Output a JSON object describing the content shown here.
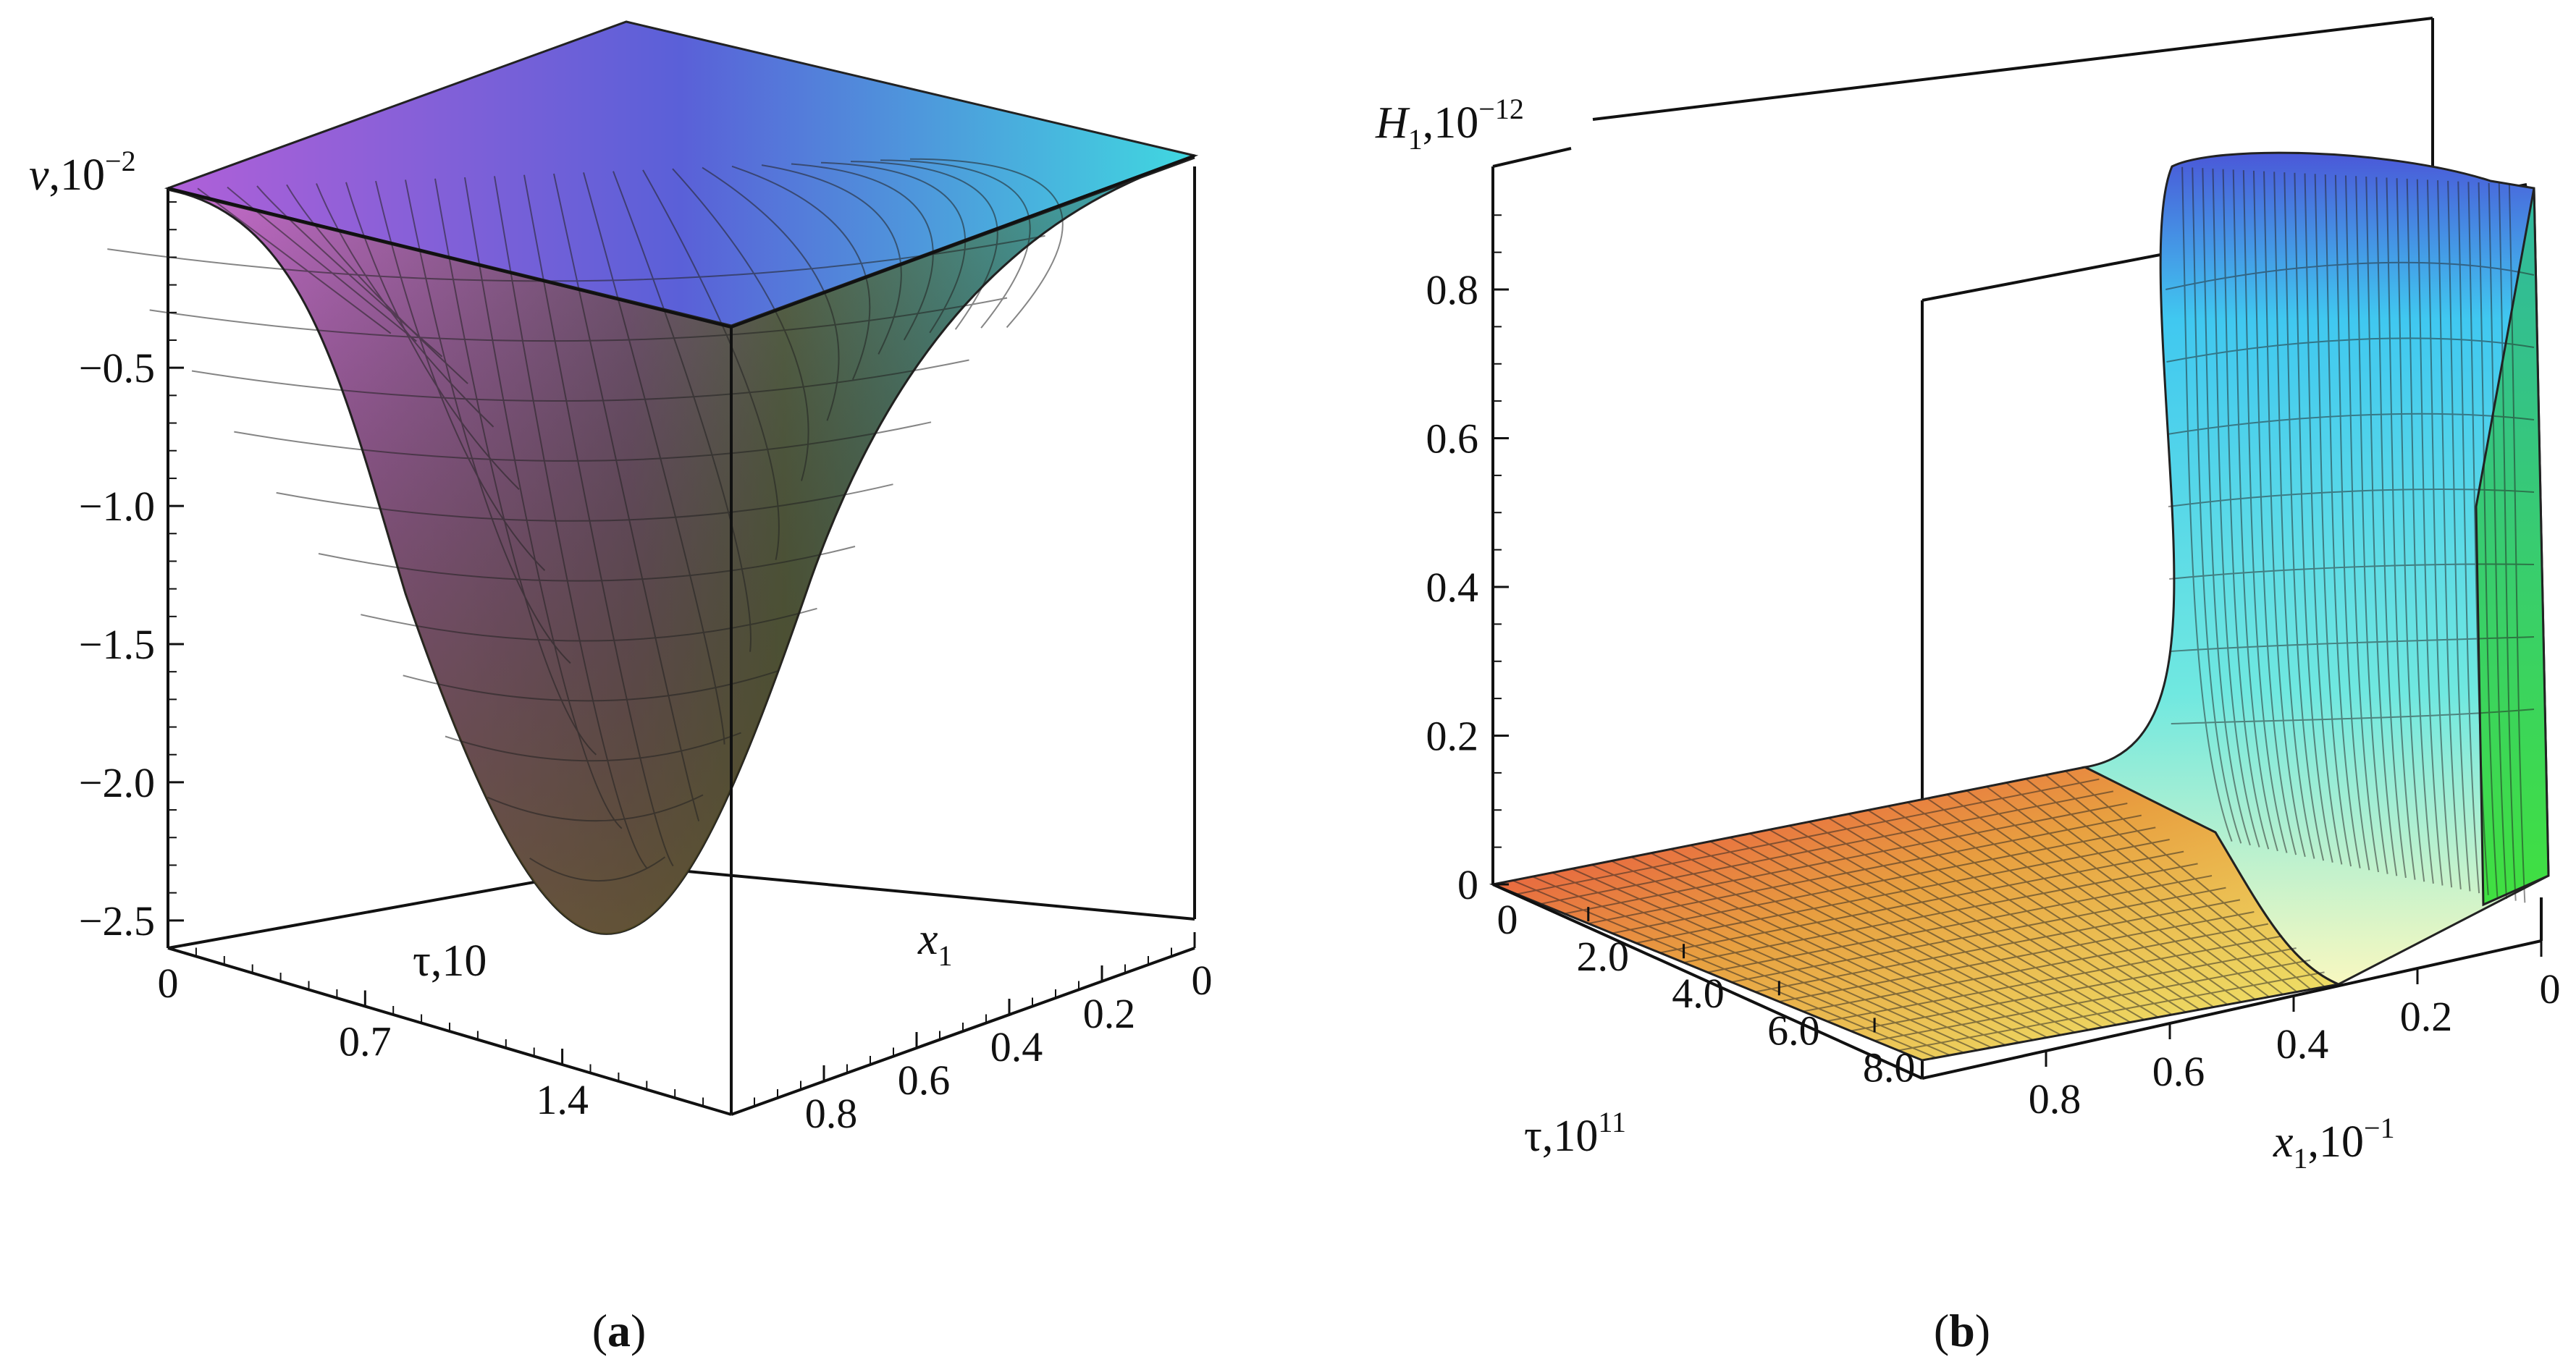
{
  "chart_data": [
    {
      "type": "surface3d",
      "panel_label": "a",
      "zlabel": {
        "base": "v",
        "exp": "10",
        "exp_sup": "−2"
      },
      "xlabel": {
        "base": "τ",
        "exp": "10"
      },
      "ylabel": {
        "base": "x",
        "sub": "1"
      },
      "z_ticks": [
        "−0.5",
        "−1.0",
        "−1.5",
        "−2.0",
        "−2.5"
      ],
      "x_ticks": [
        "0",
        "0.7",
        "1.4"
      ],
      "y_ticks": [
        "0",
        "0.2",
        "0.4",
        "0.6",
        "0.8"
      ],
      "zlim": [
        -2.6,
        0.15
      ],
      "xlim": [
        0,
        2.0
      ],
      "ylim": [
        0,
        1.0
      ],
      "min_value": -2.55,
      "colors": {
        "left": "#cc66cc",
        "right": "#33c4d9",
        "bottom": "#5a5a30",
        "top": "#6f6fd8"
      }
    },
    {
      "type": "surface3d",
      "panel_label": "b",
      "zlabel": {
        "base": "H",
        "sub": "1",
        "exp": "10",
        "exp_sup": "−12"
      },
      "xlabel": {
        "base": "τ",
        "exp": "10",
        "exp_sup": "11"
      },
      "ylabel": {
        "base": "x",
        "sub": "1",
        "exp": "10",
        "exp_sup": "−1"
      },
      "z_ticks": [
        "0",
        "0.2",
        "0.4",
        "0.6",
        "0.8"
      ],
      "x_ticks": [
        "0",
        "2.0",
        "4.0",
        "6.0",
        "8.0"
      ],
      "y_ticks": [
        "0",
        "0.2",
        "0.4",
        "0.6",
        "0.8"
      ],
      "zlim": [
        0,
        0.95
      ],
      "xlim": [
        0,
        9.0
      ],
      "ylim": [
        0,
        1.0
      ],
      "max_value": 0.93,
      "colors": {
        "low": "#e83b3b",
        "mid": "#f0f070",
        "high": "#2ed8e8",
        "peak": "#3a4fd8",
        "side": "#3fcf3f"
      }
    }
  ]
}
